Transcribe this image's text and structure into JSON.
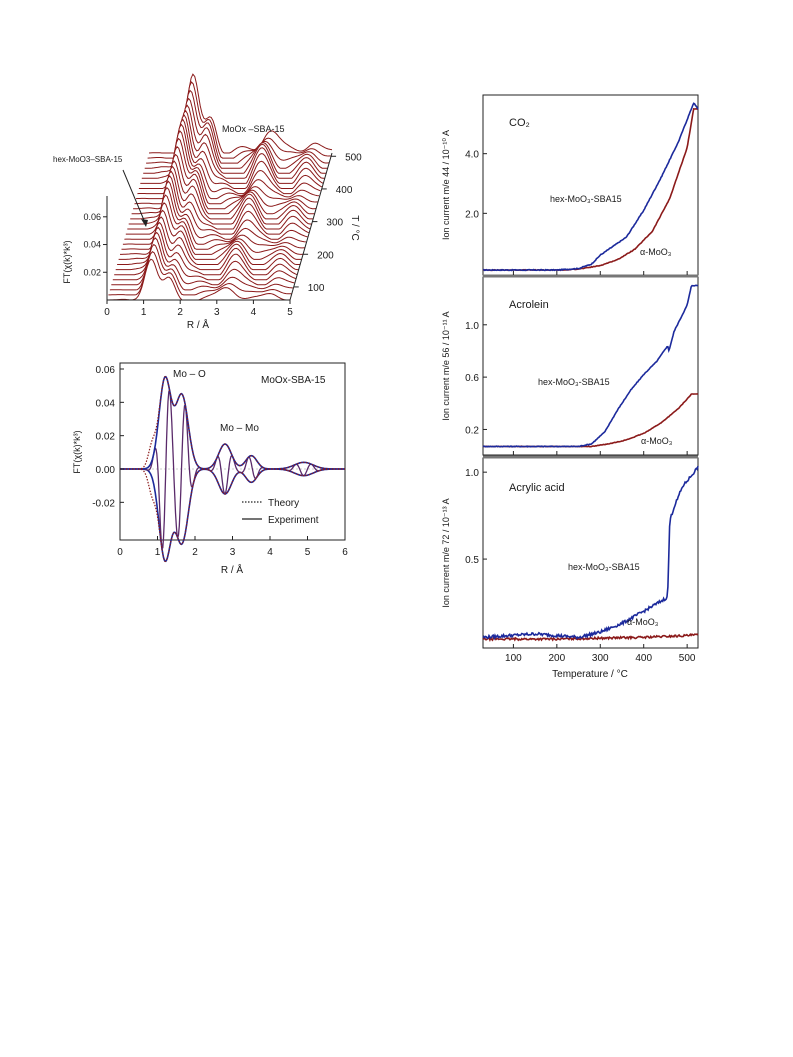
{
  "colors": {
    "red": "#8b1a1a",
    "blue": "#1c2a9c",
    "axis": "#222222"
  },
  "panel_3d": {
    "label_material": "MoOx –SBA-15",
    "label_arrow": "hex-MoO3–SBA-15",
    "x_ticks": [
      "0",
      "1",
      "2",
      "3",
      "4",
      "5"
    ],
    "y_ticks": [
      "0.02",
      "0.04",
      "0.06"
    ],
    "t_ticks": [
      "100",
      "200",
      "300",
      "400",
      "500"
    ],
    "xlabel": "R / Å",
    "ylabel": "FT(χ(k)*k³)",
    "t_axis_label": "T / °C"
  },
  "panel_fit": {
    "title": "MoOx-SBA-15",
    "ann_mo_o": "Mo – O",
    "ann_mo_mo": "Mo – Mo",
    "legend_theory": "Theory",
    "legend_experiment": "Experiment",
    "x_ticks": [
      "0",
      "1",
      "2",
      "3",
      "4",
      "5",
      "6"
    ],
    "y_ticks": [
      "0.06",
      "0.04",
      "0.02",
      "0.00",
      "-0.02"
    ],
    "xlabel": "R / Å",
    "ylabel": "FT(χ(k)*k³)"
  },
  "panel_ms": {
    "xlabel": "Temperature / °C",
    "x_ticks": [
      "100",
      "200",
      "300",
      "400",
      "500"
    ],
    "co2": {
      "title": "CO₂",
      "ylabel": "Ion current m/e 44 / 10⁻¹⁰ A",
      "y_ticks": [
        "2.0",
        "4.0"
      ],
      "series_blue": "hex-MoO₃-SBA15",
      "series_red": "α-MoO₃"
    },
    "acrolein": {
      "title": "Acrolein",
      "ylabel": "Ion current m/e 56 / 10⁻¹¹ A",
      "y_ticks": [
        "0.2",
        "0.6",
        "1.0"
      ],
      "series_blue": "hex-MoO₃-SBA15",
      "series_red": "α-MoO₃"
    },
    "acrylic": {
      "title": "Acrylic acid",
      "ylabel": "Ion current m/e 72 / 10⁻¹³ A",
      "y_ticks": [
        "0.5",
        "1.0"
      ],
      "series_blue": "hex-MoO₃-SBA15",
      "series_red": "α-MoO₃"
    }
  },
  "chart_data": [
    {
      "type": "line",
      "title": "MoOx –SBA-15",
      "xlabel": "R / Å",
      "ylabel": "FT(χ(k)*k³)",
      "xlim": [
        0,
        5
      ],
      "zlabel": "T / °C",
      "z_range": [
        60,
        510
      ],
      "traces": 30,
      "peaks_R": [
        1.2,
        1.7,
        3.3,
        4.5
      ],
      "max_y": 0.06
    },
    {
      "type": "line",
      "title": "MoOx-SBA-15",
      "xlabel": "R / Å",
      "ylabel": "FT(χ(k)*k³)",
      "xlim": [
        0,
        6
      ],
      "ylim": [
        -0.04,
        0.06
      ],
      "series": [
        {
          "name": "Theory",
          "style": "dotted"
        },
        {
          "name": "Experiment",
          "style": "solid"
        }
      ],
      "peaks": [
        {
          "R": 1.2,
          "magnitude": 0.057
        },
        {
          "R": 1.65,
          "magnitude": 0.047
        },
        {
          "R": 2.8,
          "magnitude": 0.015
        },
        {
          "R": 3.5,
          "magnitude": 0.008
        }
      ]
    },
    {
      "type": "line",
      "title": "CO₂",
      "xlabel": "Temperature / °C",
      "ylabel": "Ion current m/e 44 / 10⁻¹⁰ A",
      "xlim": [
        30,
        525
      ],
      "ylim": [
        0,
        5.9
      ],
      "series": [
        {
          "name": "hex-MoO₃-SBA15",
          "x": [
            30,
            200,
            250,
            280,
            300,
            330,
            360,
            400,
            440,
            480,
            515,
            525
          ],
          "y": [
            0.1,
            0.1,
            0.15,
            0.3,
            0.6,
            0.9,
            1.2,
            2.1,
            3.2,
            4.4,
            5.7,
            5.5
          ]
        },
        {
          "name": "α-MoO₃",
          "x": [
            30,
            220,
            260,
            300,
            340,
            380,
            420,
            460,
            500,
            515,
            525
          ],
          "y": [
            0.1,
            0.1,
            0.15,
            0.25,
            0.45,
            0.8,
            1.4,
            2.5,
            4.2,
            5.5,
            5.5
          ]
        }
      ]
    },
    {
      "type": "line",
      "title": "Acrolein",
      "xlabel": "Temperature / °C",
      "ylabel": "Ion current m/e 56 / 10⁻¹¹ A",
      "xlim": [
        30,
        525
      ],
      "ylim": [
        0.02,
        1.35
      ],
      "series": [
        {
          "name": "hex-MoO₃-SBA15",
          "x": [
            30,
            250,
            280,
            310,
            340,
            370,
            400,
            430,
            455,
            458,
            470,
            500,
            510,
            525
          ],
          "y": [
            0.07,
            0.07,
            0.09,
            0.18,
            0.35,
            0.5,
            0.62,
            0.72,
            0.84,
            0.8,
            0.95,
            1.15,
            1.3,
            1.3
          ]
        },
        {
          "name": "α-MoO₃",
          "x": [
            30,
            280,
            320,
            360,
            400,
            440,
            480,
            510,
            525
          ],
          "y": [
            0.07,
            0.07,
            0.09,
            0.12,
            0.17,
            0.25,
            0.36,
            0.47,
            0.47
          ]
        }
      ]
    },
    {
      "type": "line",
      "title": "Acrylic acid",
      "xlabel": "Temperature / °C",
      "ylabel": "Ion current m/e 72 / 10⁻¹³ A",
      "xlim": [
        30,
        525
      ],
      "ylim": [
        0.0,
        1.07
      ],
      "series": [
        {
          "name": "hex-MoO₃-SBA15",
          "x": [
            30,
            150,
            250,
            300,
            350,
            400,
            455,
            460,
            470,
            490,
            510,
            525
          ],
          "y": [
            0.05,
            0.07,
            0.05,
            0.08,
            0.13,
            0.2,
            0.28,
            0.72,
            0.8,
            0.92,
            0.98,
            1.03
          ]
        },
        {
          "name": "α-MoO₃",
          "x": [
            30,
            200,
            300,
            400,
            500,
            525
          ],
          "y": [
            0.04,
            0.04,
            0.045,
            0.05,
            0.06,
            0.065
          ]
        }
      ]
    }
  ]
}
